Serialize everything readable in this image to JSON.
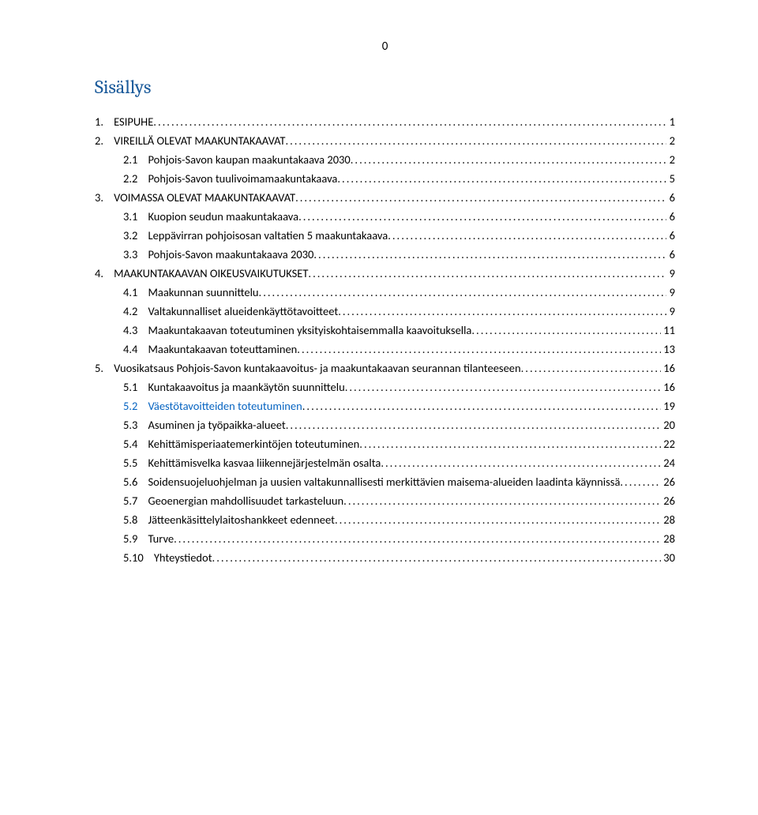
{
  "page_number": "0",
  "title": "Sisällys",
  "colors": {
    "title": "#1a5a9a",
    "link": "#0563c1",
    "text": "#000000",
    "background": "#ffffff"
  },
  "typography": {
    "title_fontsize_pt": 18,
    "title_fontfamily": "Cambria",
    "body_fontsize_pt": 11,
    "body_fontfamily": "Calibri"
  },
  "toc": [
    {
      "num": "1.",
      "title": "ESIPUHE",
      "page": "1",
      "level": 0,
      "link": false
    },
    {
      "num": "2.",
      "title": "VIREILLÄ OLEVAT MAAKUNTAKAAVAT",
      "page": "2",
      "level": 0,
      "link": false
    },
    {
      "num": "2.1",
      "title": "Pohjois-Savon kaupan maakuntakaava 2030",
      "page": "2",
      "level": 1,
      "link": false
    },
    {
      "num": "2.2",
      "title": "Pohjois-Savon tuulivoimamaakuntakaava",
      "page": "5",
      "level": 1,
      "link": false
    },
    {
      "num": "3.",
      "title": "VOIMASSA OLEVAT MAAKUNTAKAAVAT",
      "page": "6",
      "level": 0,
      "link": false
    },
    {
      "num": "3.1",
      "title": "Kuopion seudun maakuntakaava",
      "page": "6",
      "level": 1,
      "link": false
    },
    {
      "num": "3.2",
      "title": "Leppävirran pohjoisosan valtatien 5 maakuntakaava",
      "page": "6",
      "level": 1,
      "link": false
    },
    {
      "num": "3.3",
      "title": "Pohjois-Savon maakuntakaava 2030",
      "page": "6",
      "level": 1,
      "link": false
    },
    {
      "num": "4.",
      "title": "MAAKUNTAKAAVAN OIKEUSVAIKUTUKSET",
      "page": "9",
      "level": 0,
      "link": false
    },
    {
      "num": "4.1",
      "title": "Maakunnan suunnittelu",
      "page": "9",
      "level": 1,
      "link": false
    },
    {
      "num": "4.2",
      "title": "Valtakunnalliset alueidenkäyttötavoitteet",
      "page": "9",
      "level": 1,
      "link": false
    },
    {
      "num": "4.3",
      "title": "Maakuntakaavan toteutuminen yksityiskohtaisemmalla kaavoituksella",
      "page": "11",
      "level": 1,
      "link": false
    },
    {
      "num": "4.4",
      "title": "Maakuntakaavan toteuttaminen",
      "page": "13",
      "level": 1,
      "link": false
    },
    {
      "num": "5.",
      "title": "Vuosikatsaus Pohjois-Savon kuntakaavoitus- ja maakuntakaavan seurannan tilanteeseen",
      "page": "16",
      "level": 0,
      "link": false
    },
    {
      "num": "5.1",
      "title": "Kuntakaavoitus ja maankäytön suunnittelu",
      "page": "16",
      "level": 1,
      "link": false
    },
    {
      "num": "5.2",
      "title": "Väestötavoitteiden toteutuminen",
      "page": "19",
      "level": 1,
      "link": true
    },
    {
      "num": "5.3",
      "title": "Asuminen ja työpaikka-alueet",
      "page": "20",
      "level": 1,
      "link": false
    },
    {
      "num": "5.4",
      "title": "Kehittämisperiaatemerkintöjen toteutuminen",
      "page": "22",
      "level": 1,
      "link": false
    },
    {
      "num": "5.5",
      "title": "Kehittämisvelka kasvaa liikennejärjestelmän osalta",
      "page": "24",
      "level": 1,
      "link": false
    },
    {
      "num": "5.6",
      "title": "Soidensuojeluohjelman ja uusien valtakunnallisesti merkittävien maisema-alueiden laadinta käynnissä",
      "page": "26",
      "level": 1,
      "link": false
    },
    {
      "num": "5.7",
      "title": "Geoenergian mahdollisuudet tarkasteluun",
      "page": "26",
      "level": 1,
      "link": false
    },
    {
      "num": "5.8",
      "title": "Jätteenkäsittelylaitoshankkeet edenneet",
      "page": "28",
      "level": 1,
      "link": false
    },
    {
      "num": "5.9",
      "title": "Turve",
      "page": "28",
      "level": 1,
      "link": false
    },
    {
      "num": "5.10",
      "title": "Yhteystiedot",
      "page": "30",
      "level": 1,
      "link": false
    }
  ]
}
